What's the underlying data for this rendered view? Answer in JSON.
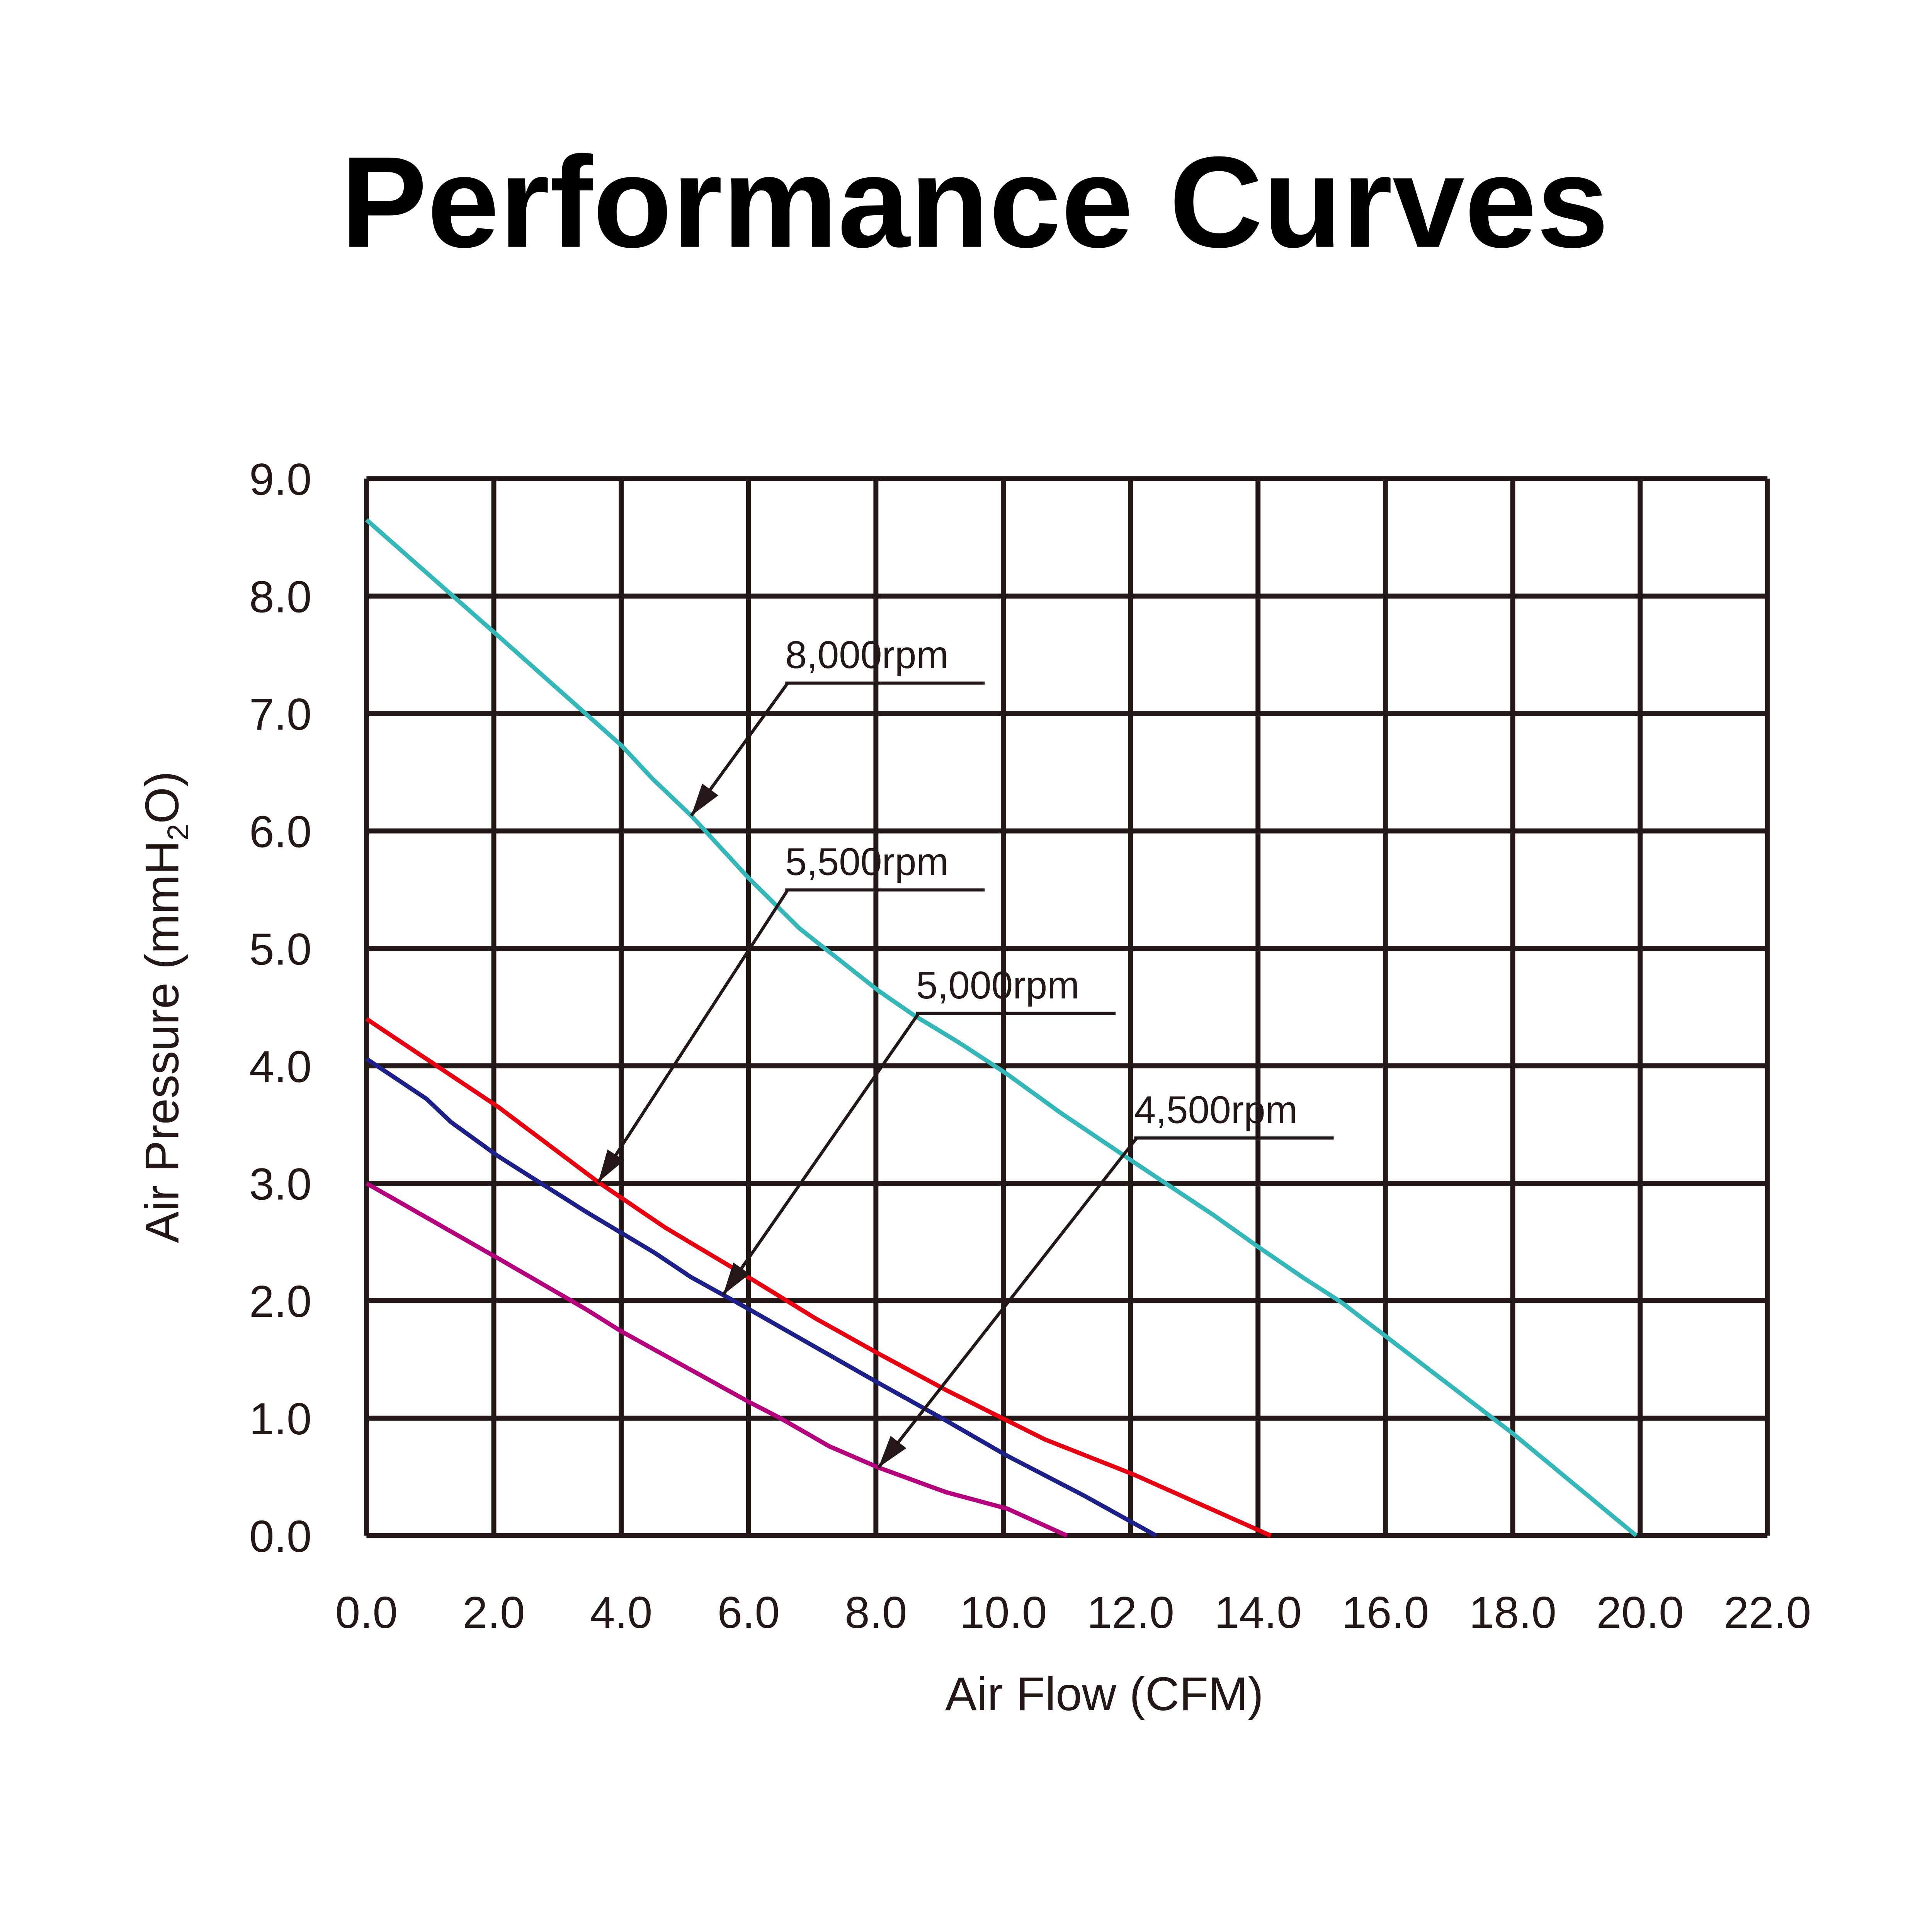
{
  "chart_data": {
    "type": "line",
    "title": "Performance Curves",
    "xlabel": "Air Flow (CFM)",
    "ylabel": {
      "main": "Air Pressure (mmH",
      "sub": "2",
      "end": "O)"
    },
    "xlim": [
      0,
      22
    ],
    "ylim": [
      0,
      9
    ],
    "grid": true,
    "x_ticks": [
      "0.0",
      "2.0",
      "4.0",
      "6.0",
      "8.0",
      "10.0",
      "12.0",
      "14.0",
      "16.0",
      "18.0",
      "20.0",
      "22.0"
    ],
    "y_ticks": [
      "0.0",
      "1.0",
      "2.0",
      "3.0",
      "4.0",
      "5.0",
      "6.0",
      "7.0",
      "8.0",
      "9.0"
    ],
    "series": [
      {
        "name": "8,000rpm",
        "color": "#35b6b8",
        "points": [
          [
            0,
            8.65
          ],
          [
            2.07,
            7.66
          ],
          [
            4,
            6.73
          ],
          [
            4.5,
            6.44
          ],
          [
            5.1,
            6.13
          ],
          [
            6,
            5.6
          ],
          [
            6.8,
            5.17
          ],
          [
            8.04,
            4.64
          ],
          [
            8.6,
            4.43
          ],
          [
            9.3,
            4.2
          ],
          [
            10.06,
            3.93
          ],
          [
            10.9,
            3.6
          ],
          [
            12.05,
            3.18
          ],
          [
            13.3,
            2.73
          ],
          [
            14,
            2.46
          ],
          [
            14.7,
            2.2
          ],
          [
            15.3,
            1.99
          ],
          [
            16,
            1.7
          ],
          [
            16.65,
            1.43
          ],
          [
            18,
            0.87
          ],
          [
            19.94,
            0
          ]
        ],
        "arrow_target": [
          5.1,
          6.13
        ]
      },
      {
        "name": "5,500rpm",
        "color": "#e60012",
        "points": [
          [
            0,
            4.4
          ],
          [
            2.07,
            3.65
          ],
          [
            3.64,
            3.01
          ],
          [
            4.7,
            2.62
          ],
          [
            6,
            2.2
          ],
          [
            7.05,
            1.85
          ],
          [
            8.04,
            1.55
          ],
          [
            9.1,
            1.24
          ],
          [
            10.06,
            0.98
          ],
          [
            10.65,
            0.82
          ],
          [
            12.05,
            0.52
          ],
          [
            13,
            0.29
          ],
          [
            14.2,
            0
          ]
        ],
        "arrow_target": [
          3.64,
          3.01
        ]
      },
      {
        "name": "5,000rpm",
        "color": "#1d2088",
        "points": [
          [
            0,
            4.06
          ],
          [
            0.94,
            3.72
          ],
          [
            1.33,
            3.52
          ],
          [
            2.07,
            3.23
          ],
          [
            3.44,
            2.76
          ],
          [
            4.52,
            2.41
          ],
          [
            5.1,
            2.2
          ],
          [
            6,
            1.93
          ],
          [
            6.97,
            1.63
          ],
          [
            8.04,
            1.3
          ],
          [
            9.1,
            0.98
          ],
          [
            10.06,
            0.68
          ],
          [
            11.27,
            0.34
          ],
          [
            12.4,
            0
          ]
        ],
        "arrow_target": [
          5.6,
          2.05
        ]
      },
      {
        "name": "4,500rpm",
        "color": "#b5007e",
        "points": [
          [
            0,
            3.0
          ],
          [
            2.07,
            2.36
          ],
          [
            3.44,
            1.93
          ],
          [
            4,
            1.74
          ],
          [
            6,
            1.14
          ],
          [
            6.5,
            1.0
          ],
          [
            7.27,
            0.76
          ],
          [
            8.04,
            0.58
          ],
          [
            9.1,
            0.37
          ],
          [
            10.06,
            0.23
          ],
          [
            11,
            0
          ]
        ],
        "arrow_target": [
          8.04,
          0.58
        ]
      }
    ]
  }
}
